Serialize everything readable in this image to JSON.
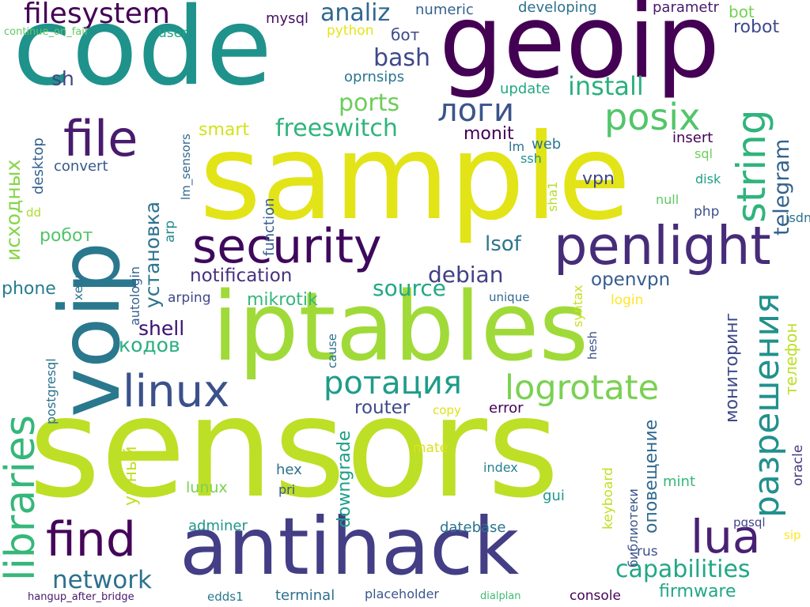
{
  "background": "#ffffff",
  "colormap": "viridis",
  "words": [
    {
      "text": "sensors",
      "color": "#bddf26"
    },
    {
      "text": "sample",
      "color": "#e2e418"
    },
    {
      "text": "code",
      "color": "#1f928c"
    },
    {
      "text": "geoip",
      "color": "#440154"
    },
    {
      "text": "iptables",
      "color": "#a0da39"
    },
    {
      "text": "antihack",
      "color": "#433e85"
    },
    {
      "text": "voip",
      "color": "#2a788e"
    },
    {
      "text": "penlight",
      "color": "#472c7a"
    },
    {
      "text": "security",
      "color": "#3e085c"
    },
    {
      "text": "linux",
      "color": "#3b518b"
    },
    {
      "text": "find",
      "color": "#450559"
    },
    {
      "text": "file",
      "color": "#481b6d"
    },
    {
      "text": "lua",
      "color": "#482173"
    },
    {
      "text": "libraries",
      "color": "#35b779"
    },
    {
      "text": "string",
      "color": "#2fb47c"
    },
    {
      "text": "разрешения",
      "color": "#21918c"
    },
    {
      "text": "posix",
      "color": "#52c569"
    },
    {
      "text": "logrotate",
      "color": "#7ad151"
    },
    {
      "text": "ротация",
      "color": "#1e9c89"
    },
    {
      "text": "логи",
      "color": "#3a548c"
    },
    {
      "text": "filesystem",
      "color": "#440154"
    },
    {
      "text": "install",
      "color": "#2ab07f"
    },
    {
      "text": "network",
      "color": "#2c728e"
    },
    {
      "text": "capabilities",
      "color": "#22a785"
    },
    {
      "text": "telegram",
      "color": "#33638d"
    },
    {
      "text": "freeswitch",
      "color": "#2fb47c"
    },
    {
      "text": "ports",
      "color": "#6ccd5a"
    },
    {
      "text": "analiz",
      "color": "#31688e"
    },
    {
      "text": "bash",
      "color": "#3e4989"
    },
    {
      "text": "debian",
      "color": "#424086"
    },
    {
      "text": "source",
      "color": "#22a884"
    },
    {
      "text": "установка",
      "color": "#2c738e"
    },
    {
      "text": "исходных",
      "color": "#86d549"
    },
    {
      "text": "кодов",
      "color": "#29af7f"
    },
    {
      "text": "shell",
      "color": "#3b0f70"
    },
    {
      "text": "notification",
      "color": "#46327e"
    },
    {
      "text": "openvpn",
      "color": "#365c8d"
    },
    {
      "text": "lsof",
      "color": "#2b758e"
    },
    {
      "text": "mikrotik",
      "color": "#35b779"
    },
    {
      "text": "робот",
      "color": "#52c569"
    },
    {
      "text": "sh",
      "color": "#3f4788"
    },
    {
      "text": "phone",
      "color": "#287d8e"
    },
    {
      "text": "router",
      "color": "#3e4a89"
    },
    {
      "text": "мониторинг",
      "color": "#3e4989"
    },
    {
      "text": "телефон",
      "color": "#bddf26"
    },
    {
      "text": "оповещение",
      "color": "#31688e"
    },
    {
      "text": "firmware",
      "color": "#22a785"
    },
    {
      "text": "умный",
      "color": "#c2df23"
    },
    {
      "text": "downgrade",
      "color": "#1f9e89"
    },
    {
      "text": "monit",
      "color": "#440154"
    },
    {
      "text": "vpn",
      "color": "#404588"
    },
    {
      "text": "robot",
      "color": "#3e4989"
    },
    {
      "text": "smart",
      "color": "#d2e21b"
    },
    {
      "text": "convert",
      "color": "#38598c"
    },
    {
      "text": "desktop",
      "color": "#34608d"
    },
    {
      "text": "mysql",
      "color": "#471063"
    },
    {
      "text": "numeric",
      "color": "#34618d"
    },
    {
      "text": "developing",
      "color": "#2d718e"
    },
    {
      "text": "parametr",
      "color": "#481a6c"
    },
    {
      "text": "bot",
      "color": "#75d054"
    },
    {
      "text": "бот",
      "color": "#3e4a89"
    },
    {
      "text": "python",
      "color": "#e5e419"
    },
    {
      "text": "user",
      "color": "#20a386"
    },
    {
      "text": "continue_on_fail",
      "color": "#5ec962"
    },
    {
      "text": "oprnsips",
      "color": "#2a778e"
    },
    {
      "text": "update",
      "color": "#22a884"
    },
    {
      "text": "insert",
      "color": "#440154"
    },
    {
      "text": "sql",
      "color": "#6ece58"
    },
    {
      "text": "disk",
      "color": "#1fa188"
    },
    {
      "text": "null",
      "color": "#5ec962"
    },
    {
      "text": "isdn",
      "color": "#2c728e"
    },
    {
      "text": "php",
      "color": "#3b528b"
    },
    {
      "text": "web",
      "color": "#2a788e"
    },
    {
      "text": "lm",
      "color": "#2c718e"
    },
    {
      "text": "ssh",
      "color": "#1f958b"
    },
    {
      "text": "sha1",
      "color": "#b5de2b"
    },
    {
      "text": "lm_sensors",
      "color": "#31678e"
    },
    {
      "text": "function",
      "color": "#365d8d"
    },
    {
      "text": "arp",
      "color": "#238a8d"
    },
    {
      "text": "autologin",
      "color": "#34608d"
    },
    {
      "text": "arping",
      "color": "#3f4889"
    },
    {
      "text": "unique",
      "color": "#31688e"
    },
    {
      "text": "login",
      "color": "#fde725"
    },
    {
      "text": "syntax",
      "color": "#c8e020"
    },
    {
      "text": "hesh",
      "color": "#3b528b"
    },
    {
      "text": "cause",
      "color": "#2c728e"
    },
    {
      "text": "postgresql",
      "color": "#2c728e"
    },
    {
      "text": "хеш",
      "color": "#2c718e"
    },
    {
      "text": "dd",
      "color": "#addc30"
    },
    {
      "text": "copy",
      "color": "#dde318"
    },
    {
      "text": "error",
      "color": "#440154"
    },
    {
      "text": "mate",
      "color": "#dae319"
    },
    {
      "text": "index",
      "color": "#26828e"
    },
    {
      "text": "hex",
      "color": "#2c718e"
    },
    {
      "text": "pri",
      "color": "#39568c"
    },
    {
      "text": "lunux",
      "color": "#7ad151"
    },
    {
      "text": "gui",
      "color": "#1f988b"
    },
    {
      "text": "keyboard",
      "color": "#c0df25"
    },
    {
      "text": "библиотеки",
      "color": "#3b528b"
    },
    {
      "text": "mint",
      "color": "#35b779"
    },
    {
      "text": "oracle",
      "color": "#453882"
    },
    {
      "text": "pgsql",
      "color": "#404688"
    },
    {
      "text": "sip",
      "color": "#fde725"
    },
    {
      "text": "rus",
      "color": "#3b518b"
    },
    {
      "text": "adminer",
      "color": "#1f968b"
    },
    {
      "text": "datebase",
      "color": "#2c738e"
    },
    {
      "text": "terminal",
      "color": "#2d708e"
    },
    {
      "text": "placeholder",
      "color": "#39568c"
    },
    {
      "text": "dialplan",
      "color": "#3fbc73"
    },
    {
      "text": "console",
      "color": "#450457"
    },
    {
      "text": "edds1",
      "color": "#2a788e"
    },
    {
      "text": "hangup_after_bridge",
      "color": "#481a6c"
    }
  ]
}
